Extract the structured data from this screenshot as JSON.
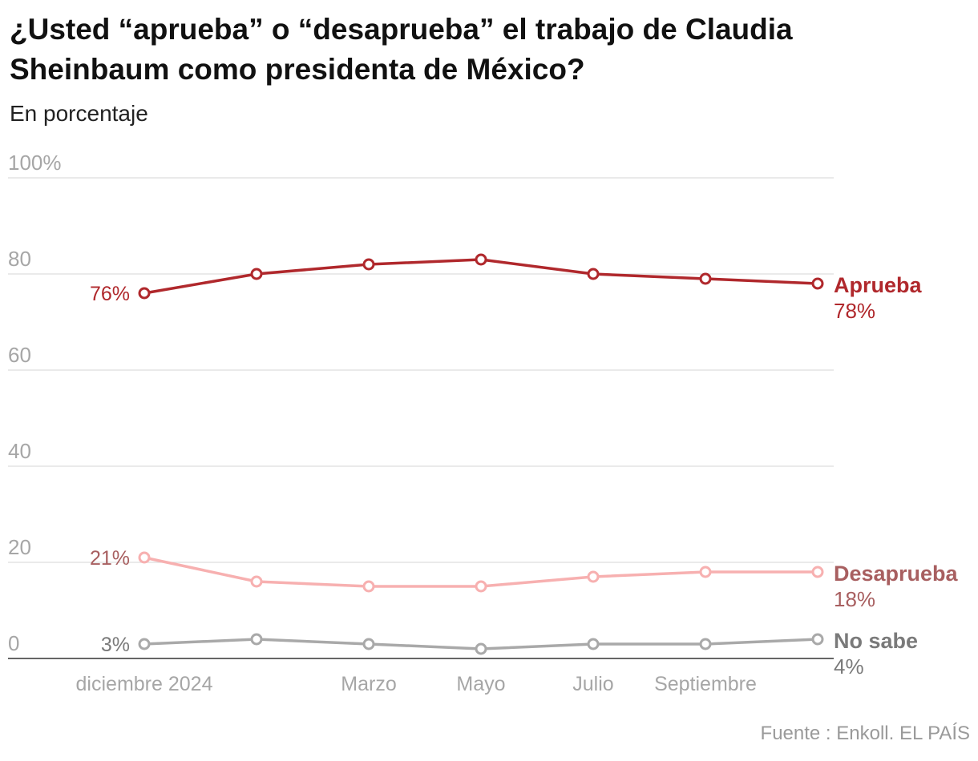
{
  "title": "¿Usted “aprueba” o “desaprueba” el trabajo de Claudia Sheinbaum como presidenta de México?",
  "subtitle": "En porcentaje",
  "source": "Fuente : Enkoll. EL PAÍS",
  "colors": {
    "aprueba": "#b0282c",
    "desaprueba": "#f7b0b0",
    "desaprueba_label": "#a85f60",
    "nosabe": "#a9a9a9",
    "nosabe_label": "#7a7a7a",
    "grid": "#dddddd",
    "tick": "#a6a6a6"
  },
  "chart_data": {
    "type": "line",
    "title": "¿Usted “aprueba” o “desaprueba” el trabajo de Claudia Sheinbaum como presidenta de México?",
    "subtitle": "En porcentaje",
    "ylim": [
      0,
      100
    ],
    "yticks": [
      0,
      20,
      40,
      60,
      80,
      100
    ],
    "ytick_labels": [
      "0",
      "20",
      "40",
      "60",
      "80",
      "100%"
    ],
    "x": [
      0,
      1,
      2,
      3,
      4,
      5,
      6
    ],
    "x_labels": [
      {
        "pos": 0,
        "label": "diciembre 2024"
      },
      {
        "pos": 2,
        "label": "Marzo"
      },
      {
        "pos": 3,
        "label": "Mayo"
      },
      {
        "pos": 4,
        "label": "Julio"
      },
      {
        "pos": 5,
        "label": "Septiembre"
      }
    ],
    "series": [
      {
        "name": "Aprueba",
        "key": "aprueba",
        "values": [
          76,
          80,
          82,
          83,
          80,
          79,
          78
        ],
        "start_label": "76%",
        "end_value_label": "78%"
      },
      {
        "name": "Desaprueba",
        "key": "desaprueba",
        "values": [
          21,
          16,
          15,
          15,
          17,
          18,
          18
        ],
        "start_label": "21%",
        "end_value_label": "18%"
      },
      {
        "name": "No sabe",
        "key": "nosabe",
        "values": [
          3,
          4,
          3,
          2,
          3,
          3,
          4
        ],
        "start_label": "3%",
        "end_value_label": "4%"
      }
    ]
  }
}
